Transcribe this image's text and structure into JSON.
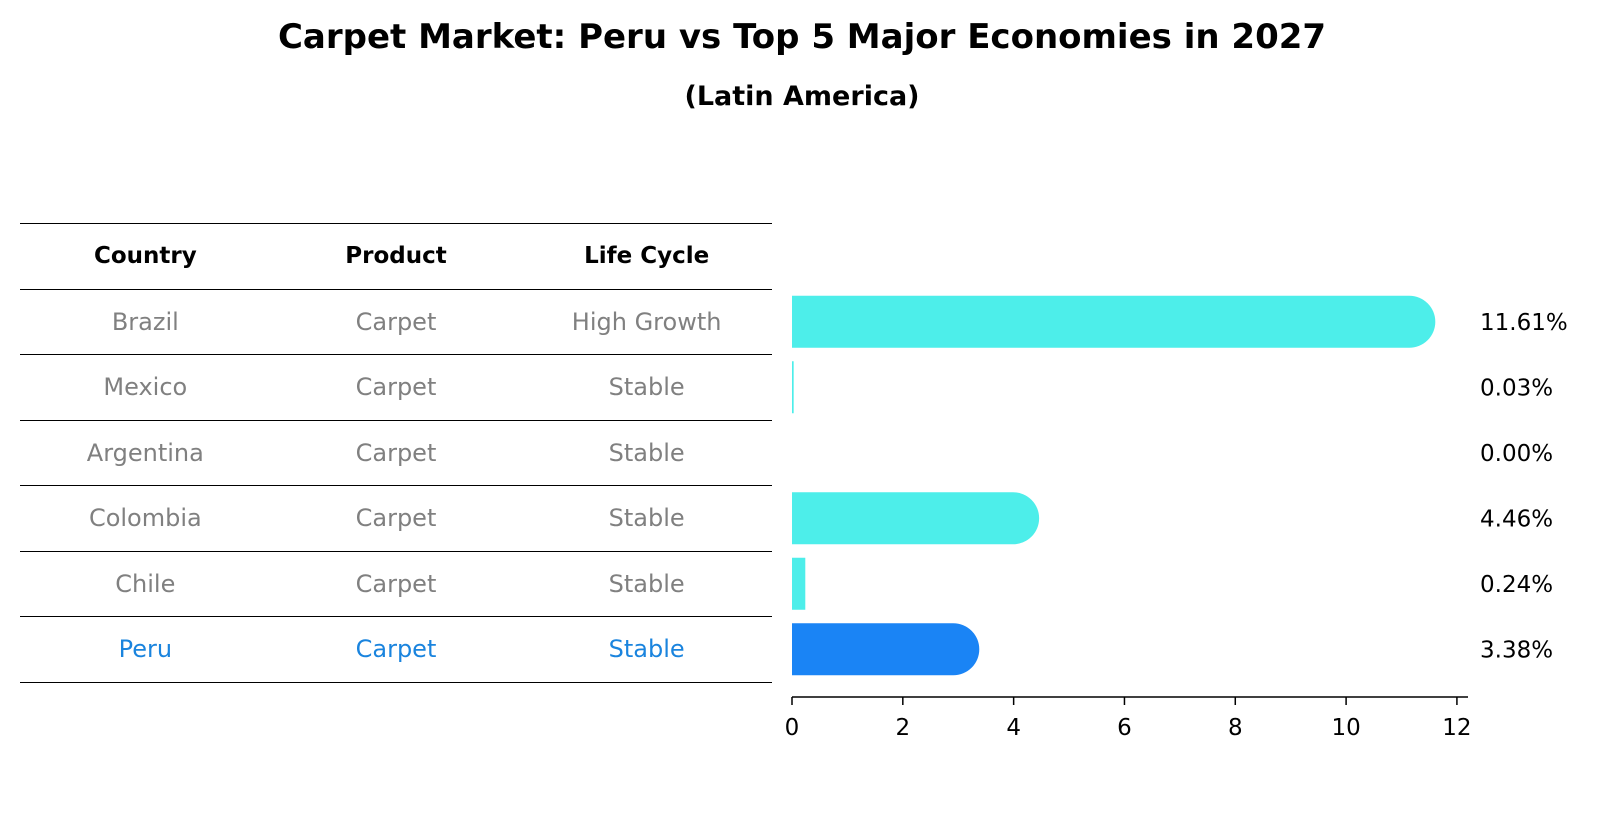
{
  "title": "Carpet Market: Peru vs Top 5 Major Economies in 2027",
  "subtitle": "(Latin America)",
  "table": {
    "headers": [
      "Country",
      "Product",
      "Life Cycle"
    ],
    "rows": [
      {
        "country": "Brazil",
        "product": "Carpet",
        "life_cycle": "High Growth"
      },
      {
        "country": "Mexico",
        "product": "Carpet",
        "life_cycle": "Stable"
      },
      {
        "country": "Argentina",
        "product": "Carpet",
        "life_cycle": "Stable"
      },
      {
        "country": "Colombia",
        "product": "Carpet",
        "life_cycle": "Stable"
      },
      {
        "country": "Chile",
        "product": "Carpet",
        "life_cycle": "Stable"
      },
      {
        "country": "Peru",
        "product": "Carpet",
        "life_cycle": "Stable"
      }
    ],
    "highlight_row": 5
  },
  "colors": {
    "bar": "#4deeea",
    "highlight_bar": "#1a84f5",
    "highlight_text": "#1a84de",
    "muted_text": "#808080"
  },
  "chart_data": {
    "type": "bar",
    "orientation": "horizontal",
    "categories": [
      "Brazil",
      "Mexico",
      "Argentina",
      "Colombia",
      "Chile",
      "Peru"
    ],
    "values": [
      11.61,
      0.03,
      0.0,
      4.46,
      0.24,
      3.38
    ],
    "value_labels": [
      "11.61%",
      "0.03%",
      "0.00%",
      "4.46%",
      "0.24%",
      "3.38%"
    ],
    "highlight_index": 5,
    "xlim": [
      0,
      12.2
    ],
    "xticks": [
      0,
      2,
      4,
      6,
      8,
      10,
      12
    ],
    "xtick_labels": [
      "0",
      "2",
      "4",
      "6",
      "8",
      "10",
      "12"
    ],
    "xlabel": "",
    "ylabel": "",
    "grid": false
  }
}
